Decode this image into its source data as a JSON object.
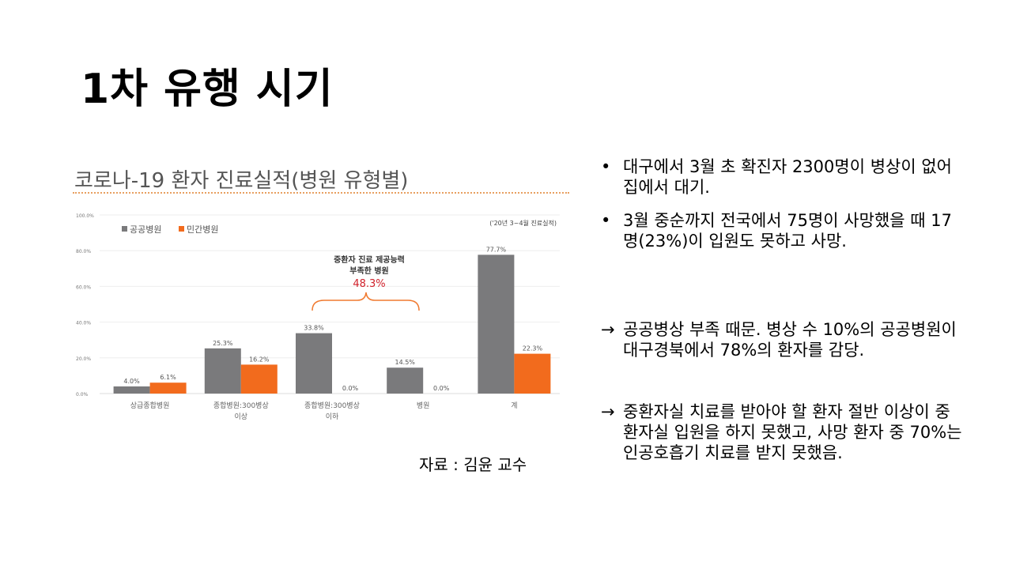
{
  "title": "1차 유행 시기",
  "source": "자료 : 김윤 교수",
  "bullets": [
    {
      "marker": "•",
      "text": "대구에서 3월 초 확진자 2300명이 병상이 없어 집에서 대기."
    },
    {
      "marker": "•",
      "text": "3월 중순까지 전국에서 75명이 사망했을 때 17명(23%)이 입원도 못하고 사망."
    },
    {
      "marker": "→",
      "text": "공공병상 부족 때문. 병상 수 10%의 공공병원이 대구경북에서 78%의 환자를 감당."
    },
    {
      "marker": "→",
      "text": "중환자실 치료를 받아야 할 환자 절반 이상이 중환자실 입원을 하지 못했고, 사망 환자 중 70%는 인공호흡기 치료를 받지 못했음."
    }
  ],
  "chart_data": {
    "type": "bar",
    "title": "코로나-19 환자 진료실적(병원 유형별)",
    "note": "('20년 3~4월 진료실적)",
    "categories": [
      [
        "상급종합병원",
        ""
      ],
      [
        "종합병원:300병상",
        "이상"
      ],
      [
        "종합병원:300병상",
        "이하"
      ],
      [
        "병원",
        ""
      ],
      [
        "계",
        ""
      ]
    ],
    "series": [
      {
        "name": "공공병원",
        "color": "#7a7a7c",
        "values": [
          4.0,
          25.3,
          33.8,
          14.5,
          77.7
        ],
        "labels": [
          "4.0%",
          "25.3%",
          "33.8%",
          "14.5%",
          "77.7%"
        ]
      },
      {
        "name": "민간병원",
        "color": "#f26b1d",
        "values": [
          6.1,
          16.2,
          0.0,
          0.0,
          22.3
        ],
        "labels": [
          "6.1%",
          "16.2%",
          "0.0%",
          "0.0%",
          "22.3%"
        ]
      }
    ],
    "yticks": [
      "0.0%",
      "20.0%",
      "40.0%",
      "60.0%",
      "80.0%",
      "100.0%"
    ],
    "ylim": [
      0,
      100
    ],
    "grid": true,
    "legend": "top-left",
    "annotation": {
      "text1": "중환자 진료 제공능력",
      "text2": "부족한 병원",
      "value": "48.3%",
      "value_color": "#d0202a",
      "brace_color": "#f07a30"
    }
  }
}
